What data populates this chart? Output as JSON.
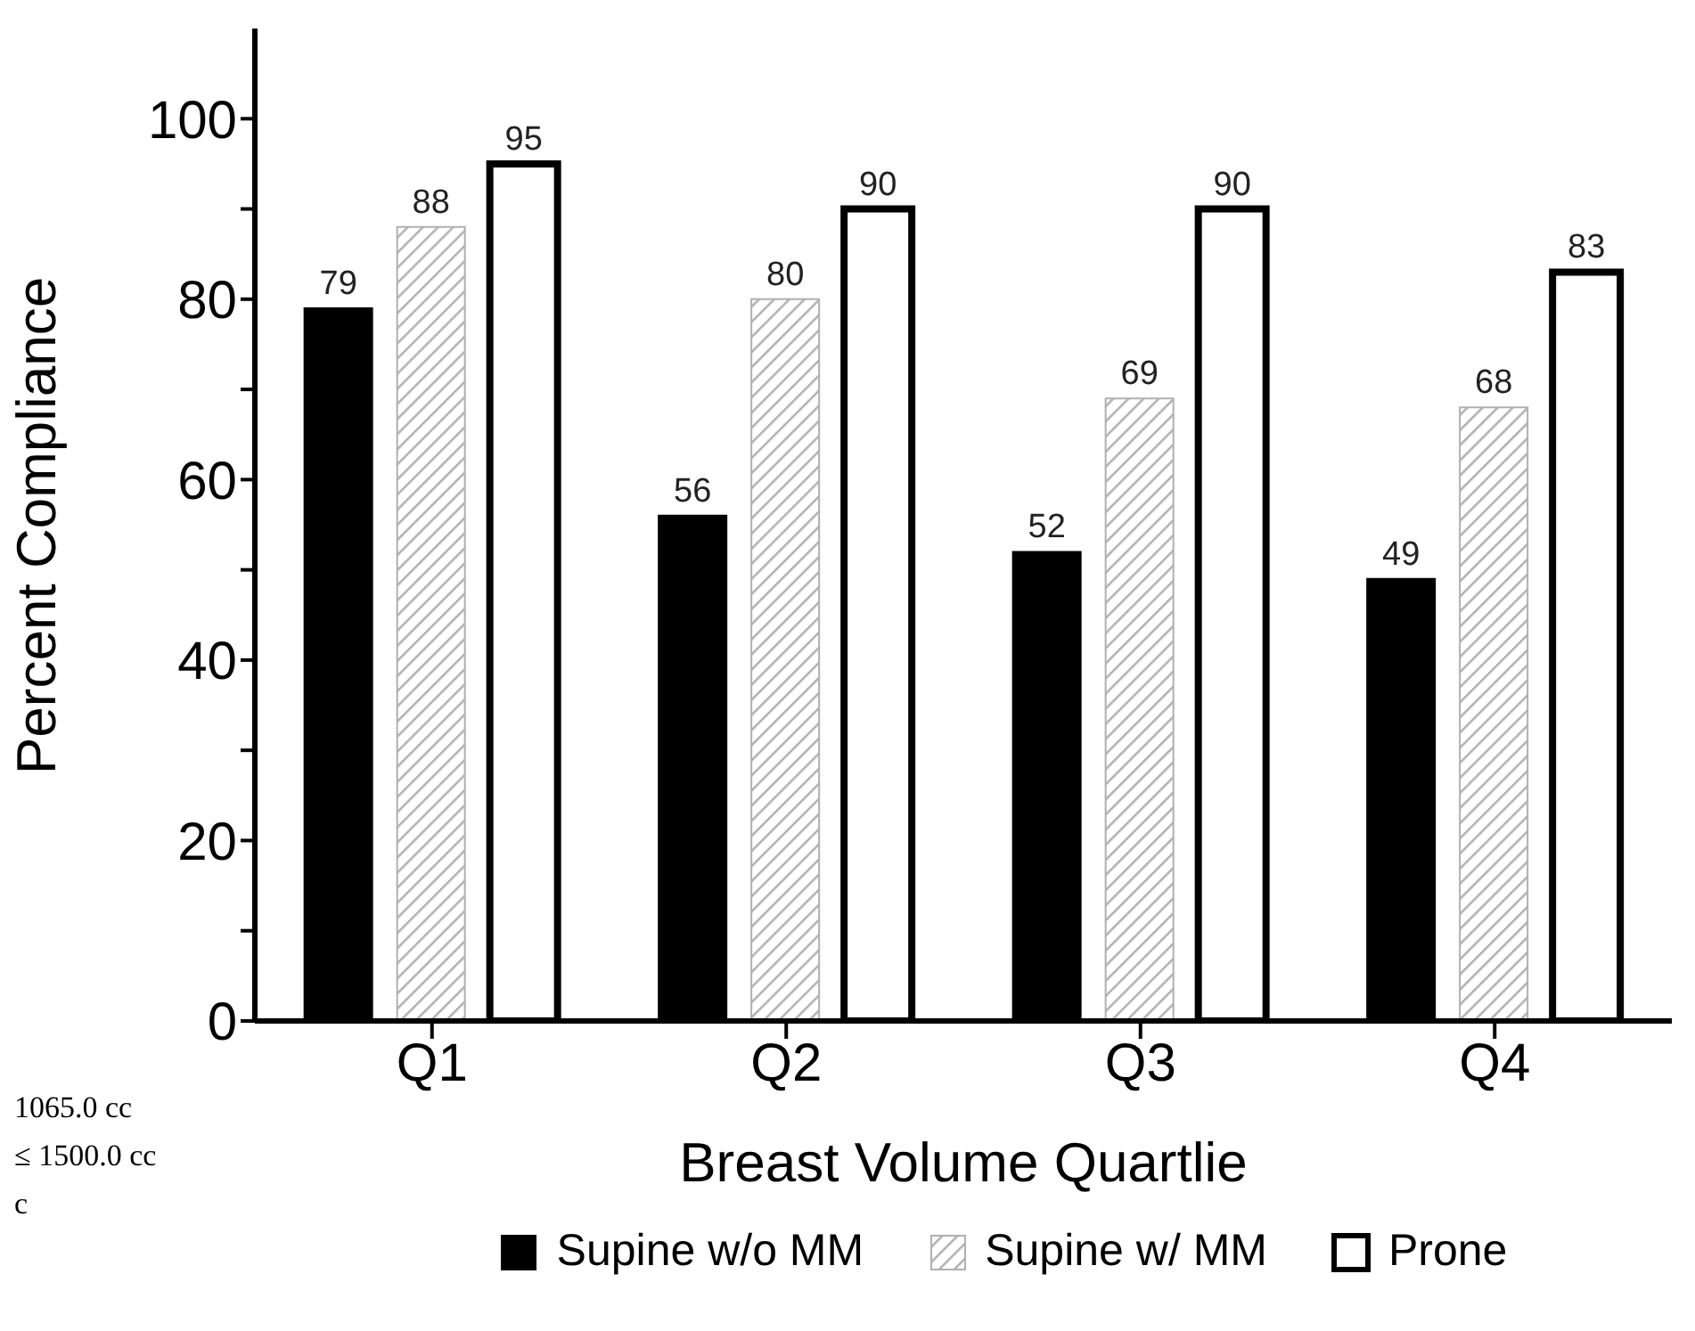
{
  "chart_data": {
    "type": "bar",
    "xlabel": "Breast Volume Quartlie",
    "ylabel": "Percent Compliance",
    "categories": [
      "Q1",
      "Q2",
      "Q3",
      "Q4"
    ],
    "series": [
      {
        "name": "Supine w/o MM",
        "color": "#000000",
        "values": [
          79,
          56,
          52,
          49
        ]
      },
      {
        "name": "Supine w/ MM",
        "color": "#b0b0b0",
        "values": [
          88,
          80,
          69,
          68
        ]
      },
      {
        "name": "Prone",
        "color": "#ffffff",
        "values": [
          95,
          90,
          90,
          83
        ]
      }
    ],
    "ylim": [
      0,
      110
    ],
    "yticks": [
      0,
      {
        "value": 10,
        "label": null
      },
      20,
      {
        "value": 30,
        "label": null
      },
      40,
      {
        "value": 50,
        "label": null
      },
      60,
      {
        "value": 70,
        "label": null
      },
      80,
      {
        "value": 90,
        "label": null
      },
      100
    ],
    "data_labels": true,
    "grid": false,
    "legend": "bottom",
    "annotations": [
      "1065.0 cc",
      "≤ 1500.0 cc",
      "c"
    ]
  }
}
